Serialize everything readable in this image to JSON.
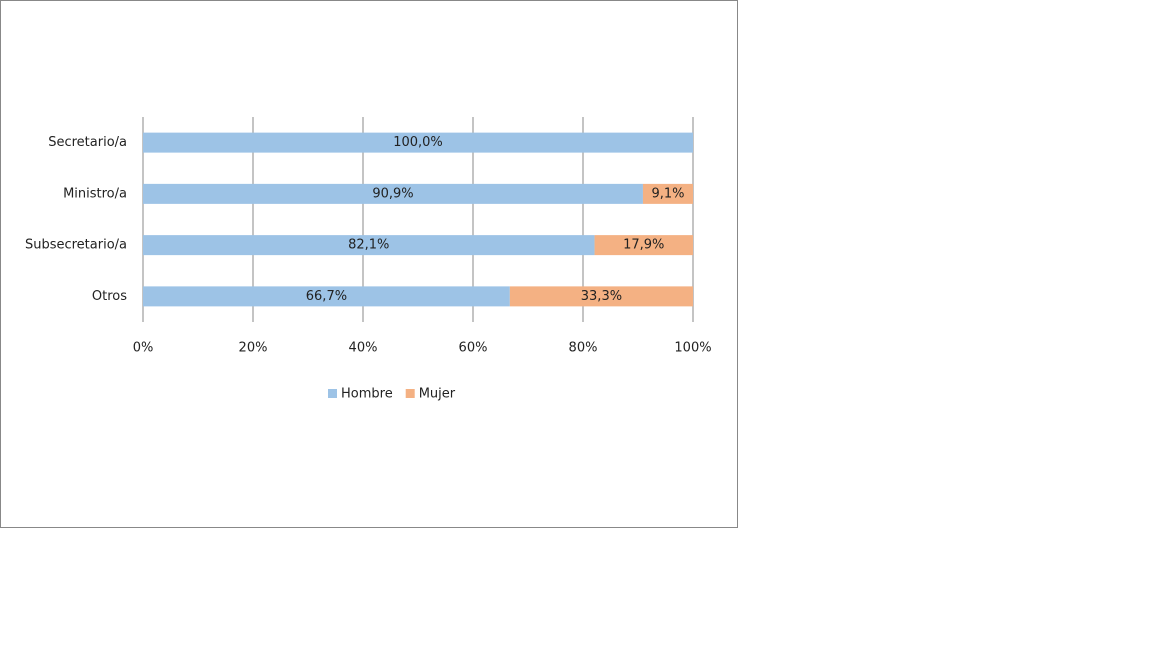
{
  "chart_data": {
    "type": "stacked-barh",
    "categories": [
      "Secretario/a",
      "Ministro/a",
      "Subsecretario/a",
      "Otros"
    ],
    "series": [
      {
        "name": "Hombre",
        "color": "#9dc3e6",
        "values": [
          100.0,
          90.9,
          82.1,
          66.7
        ],
        "value_labels": [
          "100,0%",
          "90,9%",
          "82,1%",
          "66,7%"
        ]
      },
      {
        "name": "Mujer",
        "color": "#f4b183",
        "values": [
          0,
          9.1,
          17.9,
          33.3
        ],
        "value_labels": [
          null,
          "9,1%",
          "17,9%",
          "33,3%"
        ]
      }
    ],
    "xlim": [
      0,
      100
    ],
    "xticks": [
      {
        "value": 0,
        "label": "0%"
      },
      {
        "value": 20,
        "label": "20%"
      },
      {
        "value": 40,
        "label": "40%"
      },
      {
        "value": 60,
        "label": "60%"
      },
      {
        "value": 80,
        "label": "80%"
      },
      {
        "value": 100,
        "label": "100%"
      }
    ],
    "grid": true,
    "legend": "bottom"
  }
}
